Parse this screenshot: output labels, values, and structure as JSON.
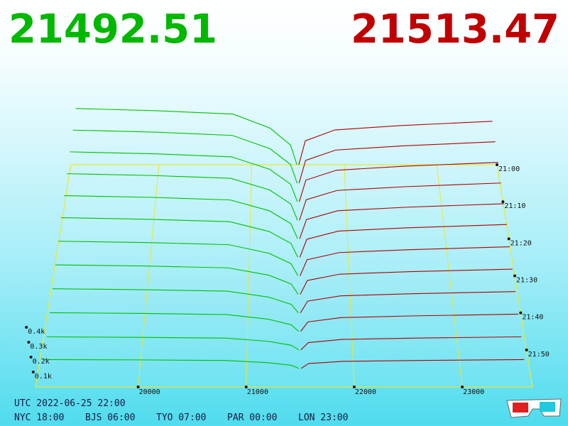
{
  "header": {
    "bid_price": "21492.51",
    "ask_price": "21513.47"
  },
  "chart_data": {
    "type": "depth3d",
    "xlim": [
      19050,
      23650
    ],
    "xticks": [
      20000,
      21000,
      22000,
      23000
    ],
    "tlim": [
      0,
      60
    ],
    "tticks": [
      {
        "value": 0,
        "label": "21:00"
      },
      {
        "value": 10,
        "label": "21:10"
      },
      {
        "value": 20,
        "label": "21:20"
      },
      {
        "value": 30,
        "label": "21:30"
      },
      {
        "value": 40,
        "label": "21:40"
      },
      {
        "value": 50,
        "label": "21:50"
      }
    ],
    "zlim": [
      0,
      500
    ],
    "zticks": [
      {
        "value": 100,
        "label": "0.1k"
      },
      {
        "value": 200,
        "label": "0.2k"
      },
      {
        "value": 300,
        "label": "0.3k"
      },
      {
        "value": 400,
        "label": "0.4k"
      }
    ],
    "bid_color": "#00c000",
    "ask_color": "#b00000",
    "floor_color": "#e8e830",
    "bid_prices": [
      19100,
      20000,
      20800,
      21200,
      21420,
      21490
    ],
    "ask_prices": [
      21510,
      21580,
      21900,
      22600,
      23600
    ],
    "slices": [
      {
        "time": 0,
        "bid": [
          440,
          422,
          396,
          286,
          154,
          0
        ],
        "ask": [
          0,
          187,
          272,
          306,
          340
        ]
      },
      {
        "time": 5,
        "bid": [
          410,
          394,
          369,
          267,
          144,
          0
        ],
        "ask": [
          0,
          176,
          256,
          288,
          320
        ]
      },
      {
        "time": 10,
        "bid": [
          380,
          365,
          342,
          247,
          133,
          0
        ],
        "ask": [
          0,
          165,
          240,
          270,
          300
        ]
      },
      {
        "time": 15,
        "bid": [
          350,
          336,
          315,
          228,
          123,
          0
        ],
        "ask": [
          0,
          154,
          224,
          252,
          280
        ]
      },
      {
        "time": 20,
        "bid": [
          320,
          307,
          288,
          208,
          112,
          0
        ],
        "ask": [
          0,
          143,
          208,
          234,
          260
        ]
      },
      {
        "time": 25,
        "bid": [
          290,
          278,
          261,
          189,
          102,
          0
        ],
        "ask": [
          0,
          132,
          192,
          216,
          240
        ]
      },
      {
        "time": 30,
        "bid": [
          250,
          240,
          225,
          163,
          88,
          0
        ],
        "ask": [
          0,
          116,
          168,
          189,
          210
        ]
      },
      {
        "time": 35,
        "bid": [
          210,
          202,
          189,
          137,
          74,
          0
        ],
        "ask": [
          0,
          99,
          144,
          162,
          180
        ]
      },
      {
        "time": 40,
        "bid": [
          170,
          163,
          153,
          111,
          60,
          0
        ],
        "ask": [
          0,
          83,
          120,
          135,
          150
        ]
      },
      {
        "time": 45,
        "bid": [
          130,
          125,
          117,
          85,
          46,
          0
        ],
        "ask": [
          0,
          66,
          96,
          108,
          120
        ]
      },
      {
        "time": 50,
        "bid": [
          90,
          86,
          81,
          59,
          32,
          0
        ],
        "ask": [
          0,
          50,
          72,
          81,
          90
        ]
      },
      {
        "time": 55,
        "bid": [
          60,
          58,
          54,
          39,
          21,
          0
        ],
        "ask": [
          0,
          33,
          48,
          54,
          60
        ]
      }
    ]
  },
  "footer": {
    "utc": "UTC 2022-06-25 22:00",
    "zones": [
      "NYC 18:00",
      "BJS 06:00",
      "TYO 07:00",
      "PAR 00:00",
      "LON 23:00"
    ]
  }
}
